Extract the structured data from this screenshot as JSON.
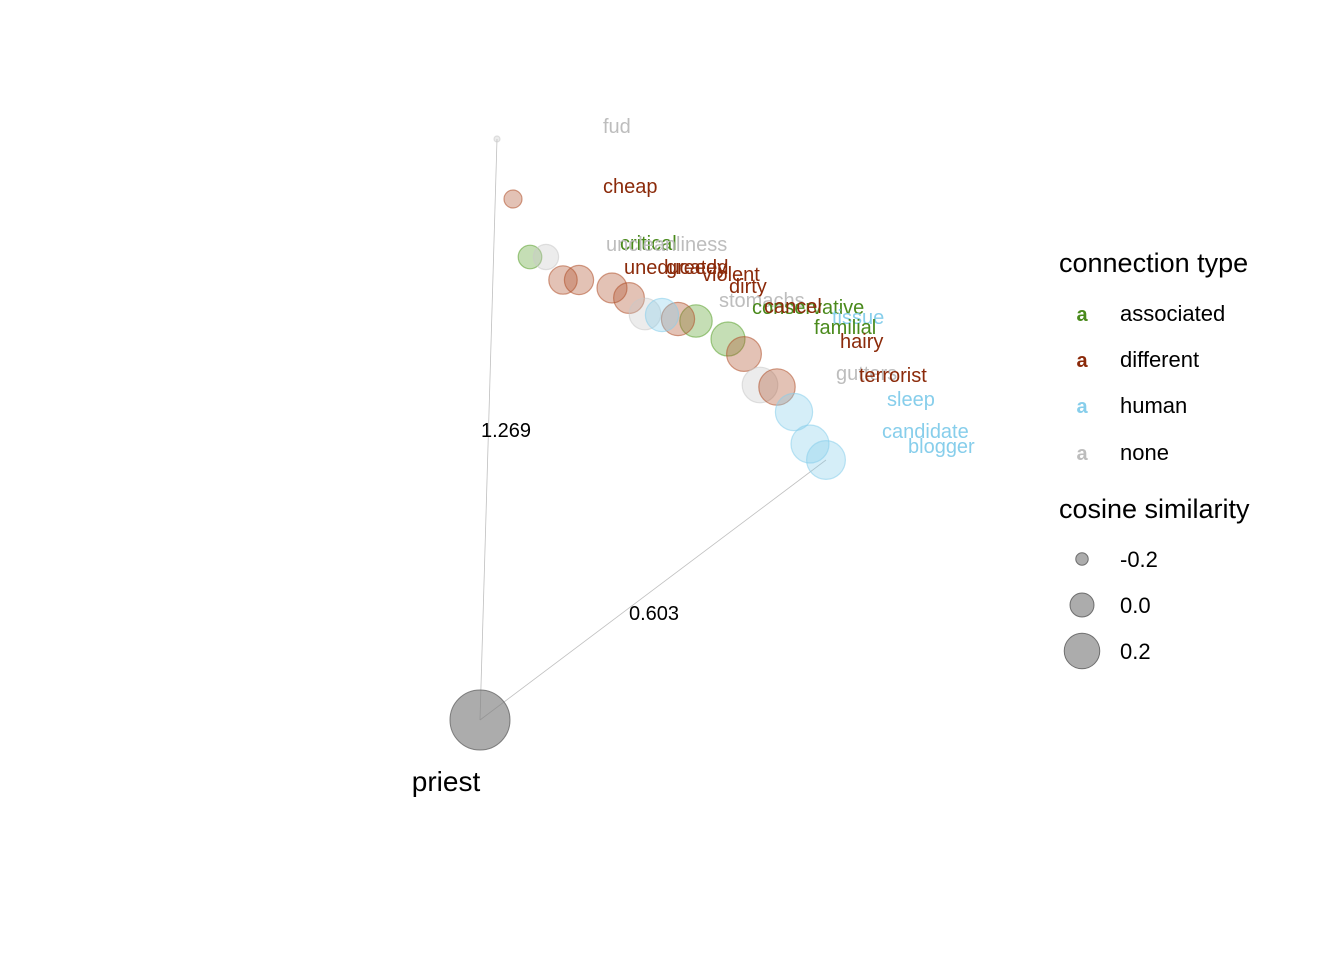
{
  "chart_data": {
    "type": "scatter",
    "title": "",
    "origin_label": "priest",
    "origin_similarity": 0.95,
    "axis_annotations": [
      {
        "label": "1.269",
        "toward": "fud"
      },
      {
        "label": "0.603",
        "toward": "blogger"
      }
    ],
    "colors": {
      "associated": "#5aa02c",
      "different": "#b0502a",
      "human": "#87ceeb",
      "none": "#c8c8c8",
      "label_associated": "#4a8a1c",
      "label_different": "#8b2a0a",
      "label_human": "#87ceeb",
      "label_none": "#bdbdbd"
    },
    "legend": {
      "placement": "right",
      "type_title": "connection type",
      "type_glyph": "a",
      "types": [
        {
          "key": "associated",
          "label": "associated"
        },
        {
          "key": "different",
          "label": "different"
        },
        {
          "key": "human",
          "label": "human"
        },
        {
          "key": "none",
          "label": "none"
        }
      ],
      "size_title": "cosine similarity",
      "sizes": [
        {
          "value": -0.2,
          "label": "-0.2"
        },
        {
          "value": 0.0,
          "label": "0.0"
        },
        {
          "value": 0.2,
          "label": "0.2"
        }
      ]
    },
    "points": [
      {
        "word": "fud",
        "type": "none",
        "similarity": -0.3
      },
      {
        "word": "cheap",
        "type": "different",
        "similarity": -0.15
      },
      {
        "word": "critical",
        "type": "associated",
        "similarity": -0.08
      },
      {
        "word": "uncleanliness",
        "type": "none",
        "similarity": -0.06
      },
      {
        "word": "uneducated",
        "type": "different",
        "similarity": -0.02
      },
      {
        "word": "greedy",
        "type": "different",
        "similarity": -0.01
      },
      {
        "word": "violent",
        "type": "different",
        "similarity": 0.0
      },
      {
        "word": "dirty",
        "type": "different",
        "similarity": 0.01
      },
      {
        "word": "stomachs",
        "type": "none",
        "similarity": 0.02
      },
      {
        "word": "conservative",
        "type": "associated",
        "similarity": 0.03
      },
      {
        "word": "cancel",
        "type": "different",
        "similarity": 0.04
      },
      {
        "word": "tissue",
        "type": "human",
        "similarity": 0.04
      },
      {
        "word": "familial",
        "type": "associated",
        "similarity": 0.05
      },
      {
        "word": "hairy",
        "type": "different",
        "similarity": 0.06
      },
      {
        "word": "gutters",
        "type": "none",
        "similarity": 0.07
      },
      {
        "word": "terrorist",
        "type": "different",
        "similarity": 0.08
      },
      {
        "word": "sleep",
        "type": "human",
        "similarity": 0.09
      },
      {
        "word": "candidate",
        "type": "human",
        "similarity": 0.1
      },
      {
        "word": "blogger",
        "type": "human",
        "similarity": 0.11
      }
    ]
  }
}
